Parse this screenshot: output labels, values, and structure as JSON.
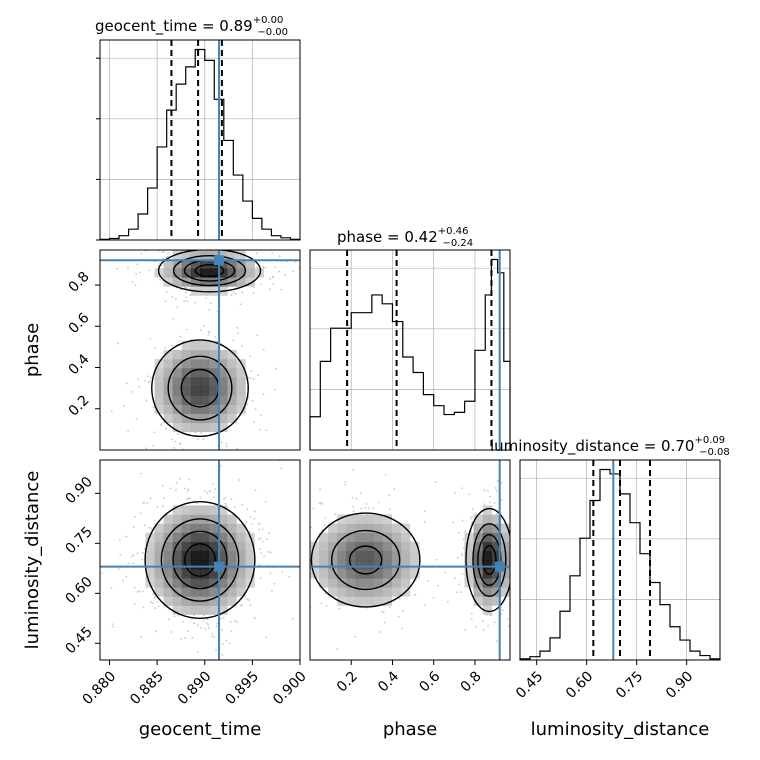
{
  "chart_data": [
    {
      "type": "histogram",
      "panel": "geocent_time marginal",
      "title": {
        "name": "geocent_time",
        "median": "0.89",
        "plus": "+0.00",
        "minus": "−0.00"
      },
      "xlim": [
        0.879,
        0.9
      ],
      "x_ticks": [
        "0.880",
        "0.885",
        "0.890",
        "0.895",
        "0.900"
      ],
      "x_tick_values": [
        0.88,
        0.885,
        0.89,
        0.895,
        0.9
      ],
      "bins": [
        0.879,
        0.88,
        0.881,
        0.882,
        0.883,
        0.884,
        0.885,
        0.886,
        0.887,
        0.888,
        0.889,
        0.89,
        0.891,
        0.892,
        0.893,
        0.894,
        0.895,
        0.896,
        0.897,
        0.898,
        0.899,
        0.9
      ],
      "counts": [
        0.3,
        0.7,
        2,
        5,
        12,
        24,
        43,
        60,
        72,
        80,
        88,
        83,
        65,
        46,
        30,
        18,
        10,
        5,
        2,
        1,
        0.3
      ],
      "quantiles": [
        0.8865,
        0.8893,
        0.8918
      ],
      "truth": 0.8915,
      "grid": true
    },
    {
      "type": "histogram",
      "panel": "phase marginal",
      "title": {
        "name": "phase",
        "median": "0.42",
        "plus": "+0.46",
        "minus": "−0.24"
      },
      "xlim": [
        0.0,
        0.97
      ],
      "x_ticks": [
        "0.2",
        "0.4",
        "0.6",
        "0.8"
      ],
      "x_tick_values": [
        0.2,
        0.4,
        0.6,
        0.8
      ],
      "bins": [
        0.0,
        0.05,
        0.1,
        0.15,
        0.2,
        0.25,
        0.3,
        0.35,
        0.4,
        0.45,
        0.5,
        0.55,
        0.6,
        0.65,
        0.7,
        0.75,
        0.8,
        0.85,
        0.88,
        0.91,
        0.94,
        0.97
      ],
      "counts": [
        15,
        40,
        55,
        55,
        62,
        62,
        70,
        66,
        58,
        42,
        35,
        25,
        20,
        16,
        17,
        22,
        45,
        70,
        86,
        80,
        40
      ],
      "quantiles": [
        0.18,
        0.42,
        0.88
      ],
      "truth": 0.92,
      "grid": true
    },
    {
      "type": "histogram",
      "panel": "luminosity_distance marginal",
      "title": {
        "name": "luminosity_distance",
        "median": "0.70",
        "plus": "+0.09",
        "minus": "−0.08"
      },
      "xlim": [
        0.4,
        1.0
      ],
      "x_ticks": [
        "0.45",
        "0.60",
        "0.75",
        "0.90"
      ],
      "x_tick_values": [
        0.45,
        0.6,
        0.75,
        0.9
      ],
      "bins": [
        0.4,
        0.43,
        0.46,
        0.49,
        0.52,
        0.55,
        0.58,
        0.61,
        0.64,
        0.67,
        0.7,
        0.73,
        0.76,
        0.79,
        0.82,
        0.85,
        0.88,
        0.91,
        0.94,
        0.97,
        1.0
      ],
      "counts": [
        0.5,
        1.5,
        4,
        10,
        22,
        38,
        55,
        72,
        86,
        84,
        75,
        62,
        48,
        35,
        25,
        15,
        9,
        4,
        2,
        0.5
      ],
      "quantiles": [
        0.62,
        0.7,
        0.79
      ],
      "truth": 0.68,
      "grid": true
    },
    {
      "type": "heatmap",
      "panel": "phase vs geocent_time",
      "x": "geocent_time",
      "y": "phase",
      "xlim": [
        0.879,
        0.9
      ],
      "ylim": [
        0.0,
        0.97
      ],
      "y_ticks": [
        "0.2",
        "0.4",
        "0.6",
        "0.8"
      ],
      "y_tick_values": [
        0.2,
        0.4,
        0.6,
        0.8
      ],
      "modes": [
        {
          "x": 0.8905,
          "y": 0.87,
          "sx": 0.0026,
          "sy": 0.05,
          "w": 1.0
        },
        {
          "x": 0.8895,
          "y": 0.3,
          "sx": 0.0026,
          "sy": 0.12,
          "w": 0.8
        }
      ],
      "truth": {
        "x": 0.8915,
        "y": 0.92
      }
    },
    {
      "type": "heatmap",
      "panel": "luminosity_distance vs geocent_time",
      "x": "geocent_time",
      "y": "luminosity_distance",
      "xlim": [
        0.879,
        0.9
      ],
      "ylim": [
        0.4,
        1.0
      ],
      "y_ticks": [
        "0.45",
        "0.60",
        "0.75",
        "0.90"
      ],
      "y_tick_values": [
        0.45,
        0.6,
        0.75,
        0.9
      ],
      "modes": [
        {
          "x": 0.8895,
          "y": 0.7,
          "sx": 0.0028,
          "sy": 0.085,
          "w": 1.0
        }
      ],
      "truth": {
        "x": 0.8915,
        "y": 0.68
      }
    },
    {
      "type": "heatmap",
      "panel": "luminosity_distance vs phase",
      "x": "phase",
      "y": "luminosity_distance",
      "xlim": [
        0.0,
        0.97
      ],
      "ylim": [
        0.4,
        1.0
      ],
      "modes": [
        {
          "x": 0.27,
          "y": 0.7,
          "sx": 0.14,
          "sy": 0.075,
          "w": 0.7
        },
        {
          "x": 0.87,
          "y": 0.7,
          "sx": 0.055,
          "sy": 0.075,
          "w": 1.0
        }
      ],
      "truth": {
        "x": 0.92,
        "y": 0.68
      }
    }
  ],
  "labels": {
    "geocent_time": "geocent_time",
    "phase": "phase",
    "luminosity_distance": "luminosity_distance"
  },
  "colors": {
    "truth": "#4682b4",
    "line": "#000000",
    "grid": "#b0b0b0",
    "scatter": "#c8c8c8"
  }
}
